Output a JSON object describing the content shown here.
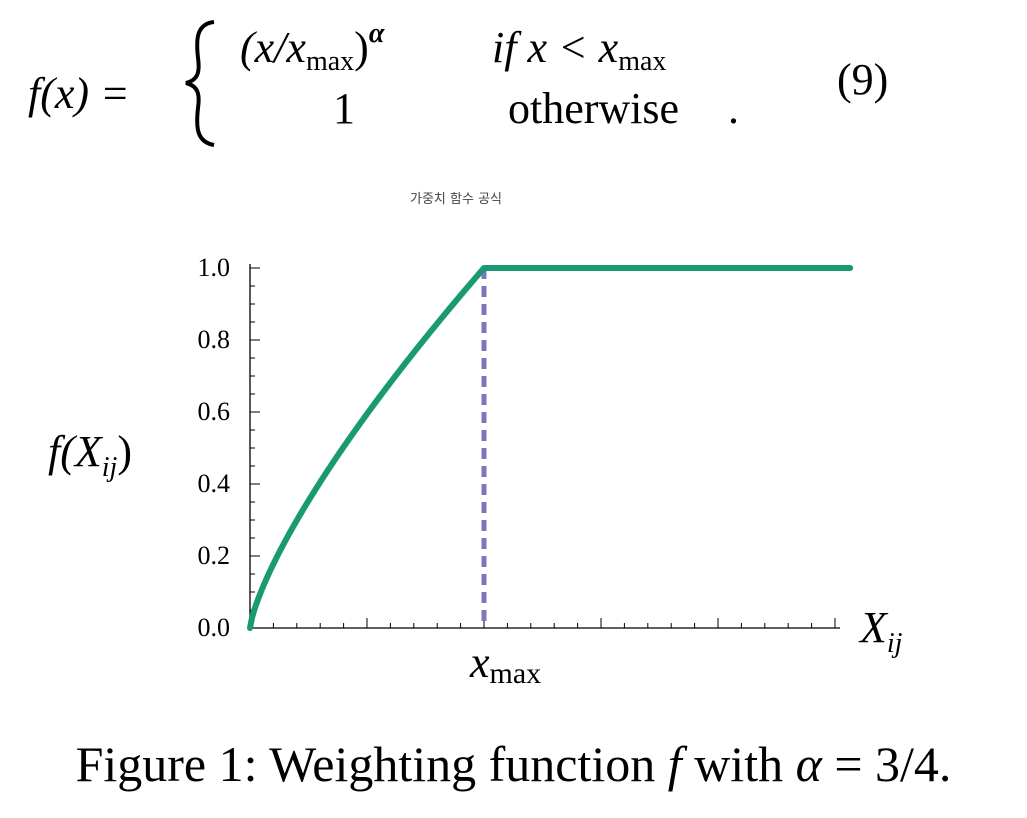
{
  "equation": {
    "lhs": "f(x) =",
    "case1_expr_base": "(x/x",
    "case1_expr_sub": "max",
    "case1_expr_close": ")",
    "case1_expr_sup": "α",
    "case1_cond_prefix": "if x < x",
    "case1_cond_sub": "max",
    "case2_expr": "1",
    "case2_cond": "otherwise",
    "case2_period": ".",
    "number": "(9)"
  },
  "small_caption": "가중치 함수 공식",
  "figure_caption": {
    "prefix": "Figure 1: Weighting function ",
    "f": "f",
    "mid": " with ",
    "alpha": "α",
    "suffix": " = 3/4."
  },
  "chart_data": {
    "type": "line",
    "alpha": 0.75,
    "x_max": 1,
    "xlim": [
      0,
      2.5
    ],
    "ylim": [
      0,
      1.0
    ],
    "y_ticks": [
      "0.0",
      "0.2",
      "0.4",
      "0.6",
      "0.8",
      "1.0"
    ],
    "y_tick_values": [
      0,
      0.2,
      0.4,
      0.6,
      0.8,
      1.0
    ],
    "ylabel": {
      "base": "f(X",
      "sub": "ij",
      "close": ")"
    },
    "xlabel": {
      "base": "X",
      "sub": "ij"
    },
    "x_marker_label": {
      "base": "x",
      "sub": "max"
    },
    "series": [
      {
        "type": "curve",
        "color": "#1a9a73"
      },
      {
        "type": "vertical-dashed",
        "x": 1,
        "color": "#7b78b8"
      }
    ]
  }
}
